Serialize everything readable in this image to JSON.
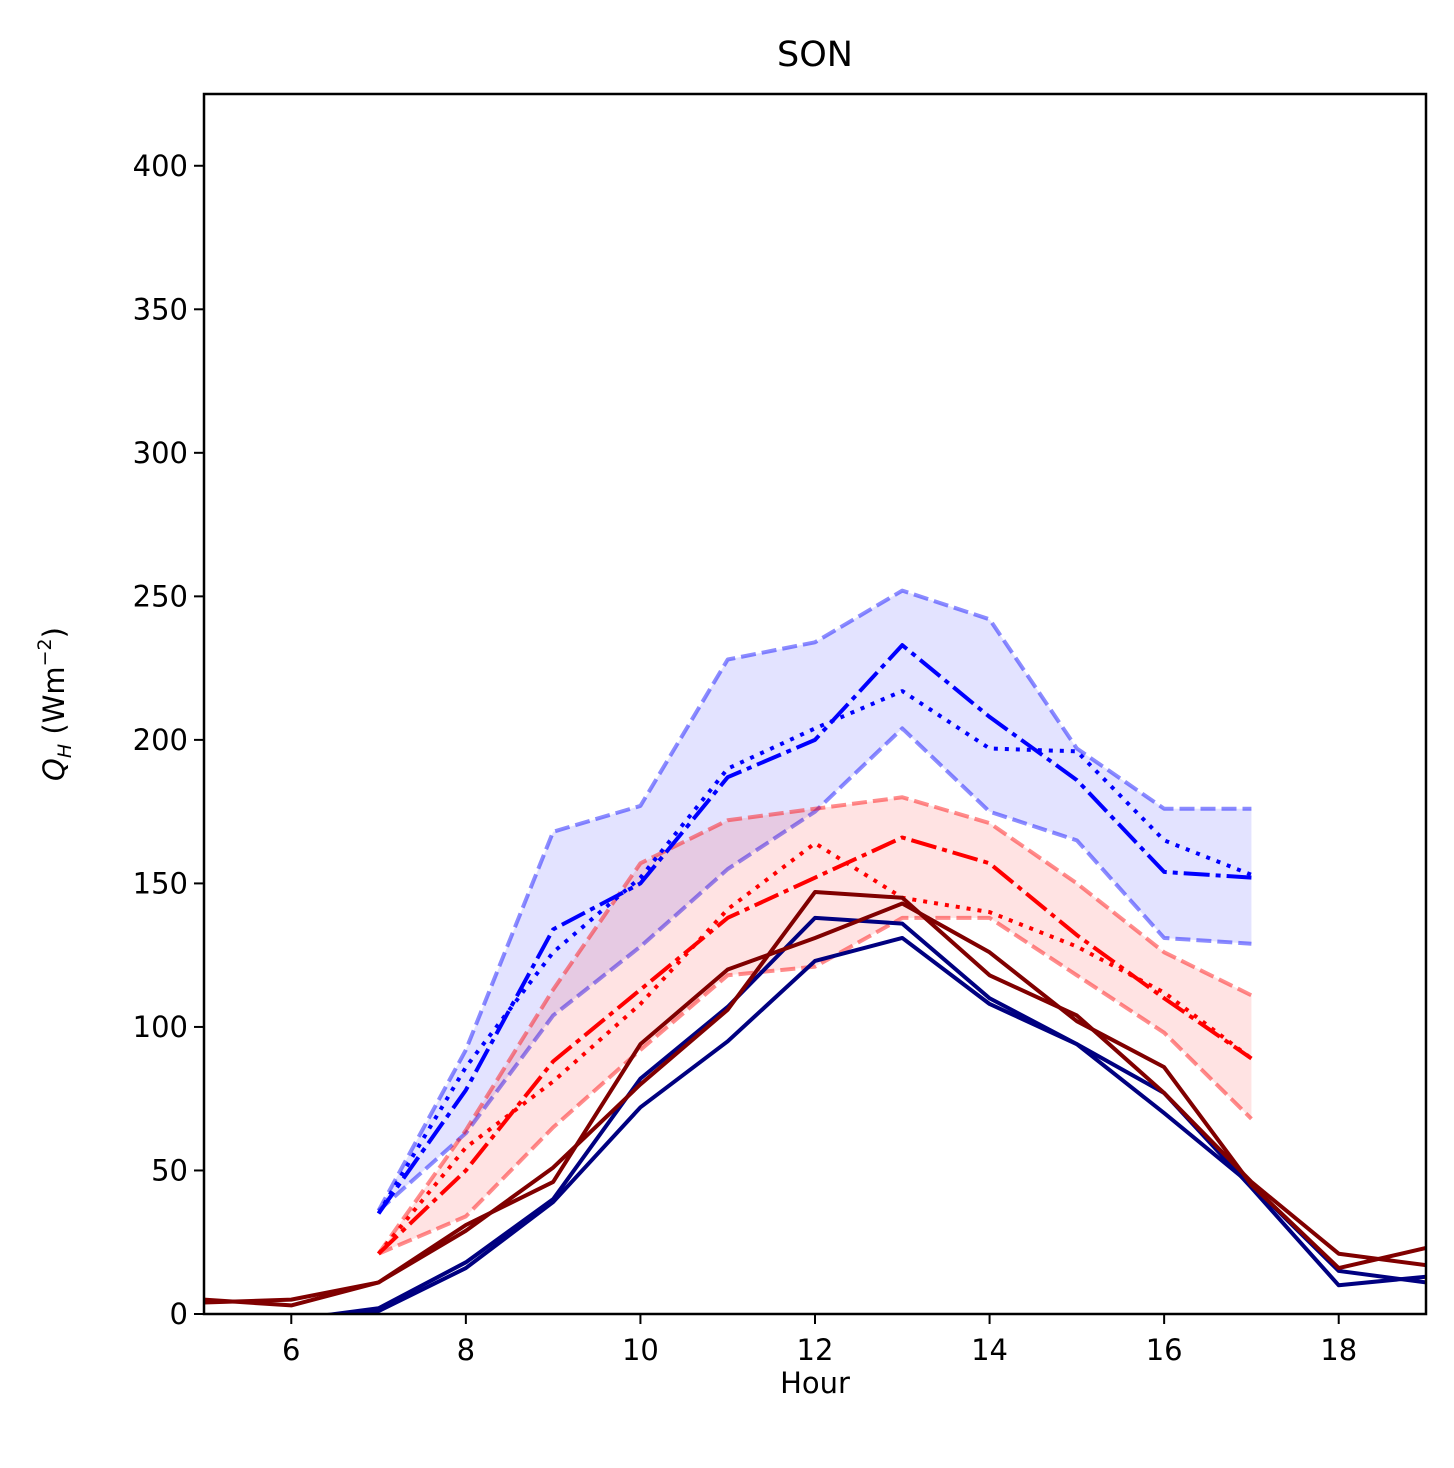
{
  "chart_data": {
    "type": "line",
    "title": "SON",
    "xlabel": "Hour",
    "ylabel": "Q",
    "ylabel_sub": "H",
    "ylabel_unit_pre": " (Wm",
    "ylabel_unit_sup": "−2",
    "ylabel_unit_post": ")",
    "xlim": [
      5,
      19
    ],
    "ylim": [
      0,
      425
    ],
    "xticks": [
      6,
      8,
      10,
      12,
      14,
      16,
      18
    ],
    "yticks": [
      0,
      50,
      100,
      150,
      200,
      250,
      300,
      350,
      400
    ],
    "grid": false,
    "bands": [
      {
        "color": "#0000ff",
        "x": [
          7,
          8,
          9,
          10,
          11,
          12,
          13,
          14,
          15,
          16,
          17
        ],
        "upper": [
          36,
          92,
          168,
          177,
          228,
          234,
          252,
          242,
          197,
          176,
          176
        ],
        "lower": [
          36,
          63,
          104,
          128,
          155,
          175,
          204,
          175,
          165,
          131,
          129
        ]
      },
      {
        "color": "#ff0000",
        "x": [
          7,
          8,
          9,
          10,
          11,
          12,
          13,
          14,
          15,
          16,
          17
        ],
        "upper": [
          21,
          64,
          113,
          157,
          172,
          176,
          180,
          171,
          150,
          126,
          111
        ],
        "lower": [
          21,
          34,
          65,
          92,
          118,
          121,
          138,
          138,
          118,
          98,
          68
        ]
      }
    ],
    "series": [
      {
        "color": "#0000ff",
        "style": "dashdot",
        "x": [
          7,
          8,
          9,
          10,
          11,
          12,
          13,
          14,
          15,
          16,
          17
        ],
        "y": [
          35,
          78,
          134,
          150,
          187,
          200,
          233,
          208,
          186,
          154,
          152
        ]
      },
      {
        "color": "#0000ff",
        "style": "dotted",
        "x": [
          7,
          8,
          9,
          10,
          11,
          12,
          13,
          14,
          15,
          16,
          17
        ],
        "y": [
          35,
          86,
          126,
          152,
          190,
          204,
          217,
          197,
          196,
          165,
          153
        ]
      },
      {
        "color": "#ff0000",
        "style": "dashdot",
        "x": [
          7,
          8,
          9,
          10,
          11,
          12,
          13,
          14,
          15,
          16,
          17
        ],
        "y": [
          21,
          50,
          88,
          113,
          138,
          152,
          166,
          157,
          132,
          110,
          89
        ]
      },
      {
        "color": "#ff0000",
        "style": "dotted",
        "x": [
          7,
          8,
          9,
          10,
          11,
          12,
          13,
          14,
          15,
          16,
          17
        ],
        "y": [
          21,
          58,
          81,
          108,
          141,
          164,
          145,
          140,
          128,
          112,
          89
        ]
      },
      {
        "color": "#000080",
        "style": "solid",
        "x": [
          5,
          6,
          7,
          8,
          9,
          10,
          11,
          12,
          13,
          14,
          15,
          16,
          17,
          18,
          19
        ],
        "y": [
          -3,
          -2,
          2,
          18,
          40,
          82,
          107,
          138,
          136,
          110,
          94,
          70,
          45,
          15,
          11
        ]
      },
      {
        "color": "#000080",
        "style": "solid",
        "x": [
          5,
          6,
          7,
          8,
          9,
          10,
          11,
          12,
          13,
          14,
          15,
          16,
          17,
          18,
          19
        ],
        "y": [
          -4,
          -3,
          1,
          16,
          39,
          72,
          95,
          123,
          131,
          108,
          94,
          77,
          44,
          10,
          13
        ]
      },
      {
        "color": "#800000",
        "style": "solid",
        "x": [
          5,
          6,
          7,
          8,
          9,
          10,
          11,
          12,
          13,
          14,
          15,
          16,
          17,
          18,
          19
        ],
        "y": [
          4,
          5,
          11,
          29,
          51,
          80,
          106,
          147,
          145,
          118,
          104,
          77,
          46,
          21,
          17
        ]
      },
      {
        "color": "#800000",
        "style": "solid",
        "x": [
          5,
          6,
          7,
          8,
          9,
          10,
          11,
          12,
          13,
          14,
          15,
          16,
          17,
          18,
          19
        ],
        "y": [
          5,
          3,
          11,
          31,
          46,
          94,
          120,
          131,
          143,
          126,
          102,
          86,
          45,
          16,
          23
        ]
      }
    ]
  }
}
